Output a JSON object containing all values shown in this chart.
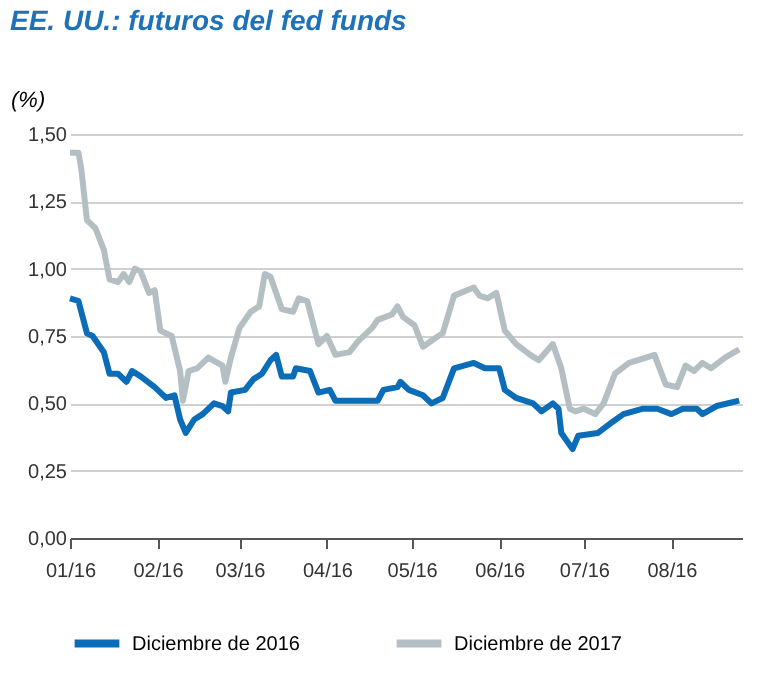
{
  "chart_data": {
    "type": "line",
    "title": "EE. UU.: futuros del fed funds",
    "ylabel": "(%)",
    "ylim": [
      0,
      1.5
    ],
    "yticks": [
      {
        "value": 0,
        "label": "0,00"
      },
      {
        "value": 0.25,
        "label": "0,25"
      },
      {
        "value": 0.5,
        "label": "0,50"
      },
      {
        "value": 0.75,
        "label": "0,75"
      },
      {
        "value": 1.0,
        "label": "1,00"
      },
      {
        "value": 1.25,
        "label": "1,25"
      },
      {
        "value": 1.5,
        "label": "1,50"
      }
    ],
    "xlim": [
      "2016-01-01",
      "2016-08-26"
    ],
    "xticks": [
      {
        "value": "2016-01-01",
        "label": "01/16"
      },
      {
        "value": "2016-02-01",
        "label": "02/16"
      },
      {
        "value": "2016-03-01",
        "label": "03/16"
      },
      {
        "value": "2016-04-01",
        "label": "04/16"
      },
      {
        "value": "2016-05-01",
        "label": "05/16"
      },
      {
        "value": "2016-06-01",
        "label": "06/16"
      },
      {
        "value": "2016-07-01",
        "label": "07/16"
      },
      {
        "value": "2016-08-01",
        "label": "08/16"
      }
    ],
    "grid": "y",
    "legend": "bottom",
    "line_style": "solid",
    "marker": "none",
    "series": [
      {
        "name": "Diciembre de 2016",
        "color": "#0b6cb8",
        "x": [
          "2016-01-01",
          "2016-01-04",
          "2016-01-07",
          "2016-01-09",
          "2016-01-13",
          "2016-01-15",
          "2016-01-18",
          "2016-01-21",
          "2016-01-23",
          "2016-01-26",
          "2016-01-31",
          "2016-02-04",
          "2016-02-07",
          "2016-02-09",
          "2016-02-11",
          "2016-02-14",
          "2016-02-17",
          "2016-02-21",
          "2016-02-24",
          "2016-02-26",
          "2016-02-27",
          "2016-03-03",
          "2016-03-06",
          "2016-03-09",
          "2016-03-12",
          "2016-03-14",
          "2016-03-16",
          "2016-03-20",
          "2016-03-21",
          "2016-03-26",
          "2016-03-29",
          "2016-04-02",
          "2016-04-04",
          "2016-04-11",
          "2016-04-19",
          "2016-04-21",
          "2016-04-26",
          "2016-04-27",
          "2016-04-30",
          "2016-05-05",
          "2016-05-08",
          "2016-05-12",
          "2016-05-16",
          "2016-05-23",
          "2016-05-27",
          "2016-06-01",
          "2016-06-03",
          "2016-06-07",
          "2016-06-13",
          "2016-06-16",
          "2016-06-20",
          "2016-06-22",
          "2016-06-23",
          "2016-06-27",
          "2016-06-29",
          "2016-07-06",
          "2016-07-11",
          "2016-07-15",
          "2016-07-22",
          "2016-07-27",
          "2016-08-01",
          "2016-08-05",
          "2016-08-10",
          "2016-08-12",
          "2016-08-17",
          "2016-08-25"
        ],
        "values": [
          0.89,
          0.88,
          0.76,
          0.75,
          0.69,
          0.61,
          0.61,
          0.58,
          0.62,
          0.6,
          0.56,
          0.52,
          0.53,
          0.44,
          0.39,
          0.44,
          0.46,
          0.5,
          0.49,
          0.47,
          0.54,
          0.55,
          0.59,
          0.61,
          0.66,
          0.68,
          0.6,
          0.6,
          0.63,
          0.62,
          0.54,
          0.55,
          0.51,
          0.51,
          0.51,
          0.55,
          0.56,
          0.58,
          0.55,
          0.53,
          0.5,
          0.52,
          0.63,
          0.65,
          0.63,
          0.63,
          0.55,
          0.52,
          0.5,
          0.47,
          0.5,
          0.48,
          0.39,
          0.33,
          0.38,
          0.39,
          0.43,
          0.46,
          0.48,
          0.48,
          0.46,
          0.48,
          0.48,
          0.46,
          0.49,
          0.51
        ]
      },
      {
        "name": "Diciembre de 2017",
        "color": "#b4bfc4",
        "x": [
          "2016-01-01",
          "2016-01-04",
          "2016-01-05",
          "2016-01-07",
          "2016-01-10",
          "2016-01-13",
          "2016-01-15",
          "2016-01-18",
          "2016-01-20",
          "2016-01-22",
          "2016-01-24",
          "2016-01-26",
          "2016-01-29",
          "2016-01-31",
          "2016-02-02",
          "2016-02-06",
          "2016-02-09",
          "2016-02-10",
          "2016-02-12",
          "2016-02-15",
          "2016-02-19",
          "2016-02-24",
          "2016-02-25",
          "2016-02-27",
          "2016-03-01",
          "2016-03-05",
          "2016-03-08",
          "2016-03-10",
          "2016-03-12",
          "2016-03-16",
          "2016-03-20",
          "2016-03-22",
          "2016-03-25",
          "2016-03-29",
          "2016-04-01",
          "2016-04-04",
          "2016-04-09",
          "2016-04-12",
          "2016-04-17",
          "2016-04-19",
          "2016-04-24",
          "2016-04-26",
          "2016-04-28",
          "2016-05-02",
          "2016-05-05",
          "2016-05-09",
          "2016-05-12",
          "2016-05-16",
          "2016-05-23",
          "2016-05-25",
          "2016-05-28",
          "2016-05-31",
          "2016-06-03",
          "2016-06-07",
          "2016-06-12",
          "2016-06-15",
          "2016-06-20",
          "2016-06-23",
          "2016-06-26",
          "2016-06-28",
          "2016-07-01",
          "2016-07-05",
          "2016-07-08",
          "2016-07-12",
          "2016-07-17",
          "2016-07-23",
          "2016-07-26",
          "2016-07-30",
          "2016-08-03",
          "2016-08-06",
          "2016-08-09",
          "2016-08-12",
          "2016-08-15",
          "2016-08-20",
          "2016-08-25"
        ],
        "values": [
          1.43,
          1.43,
          1.37,
          1.18,
          1.15,
          1.07,
          0.96,
          0.95,
          0.98,
          0.95,
          1.0,
          0.99,
          0.91,
          0.92,
          0.77,
          0.75,
          0.62,
          0.51,
          0.62,
          0.63,
          0.67,
          0.64,
          0.58,
          0.67,
          0.78,
          0.84,
          0.86,
          0.98,
          0.97,
          0.85,
          0.84,
          0.89,
          0.88,
          0.72,
          0.75,
          0.68,
          0.69,
          0.73,
          0.78,
          0.81,
          0.83,
          0.86,
          0.82,
          0.79,
          0.71,
          0.74,
          0.76,
          0.9,
          0.93,
          0.9,
          0.89,
          0.91,
          0.77,
          0.72,
          0.68,
          0.66,
          0.72,
          0.63,
          0.48,
          0.47,
          0.48,
          0.46,
          0.5,
          0.61,
          0.65,
          0.67,
          0.68,
          0.57,
          0.56,
          0.64,
          0.62,
          0.65,
          0.63,
          0.67,
          0.7
        ]
      }
    ]
  }
}
